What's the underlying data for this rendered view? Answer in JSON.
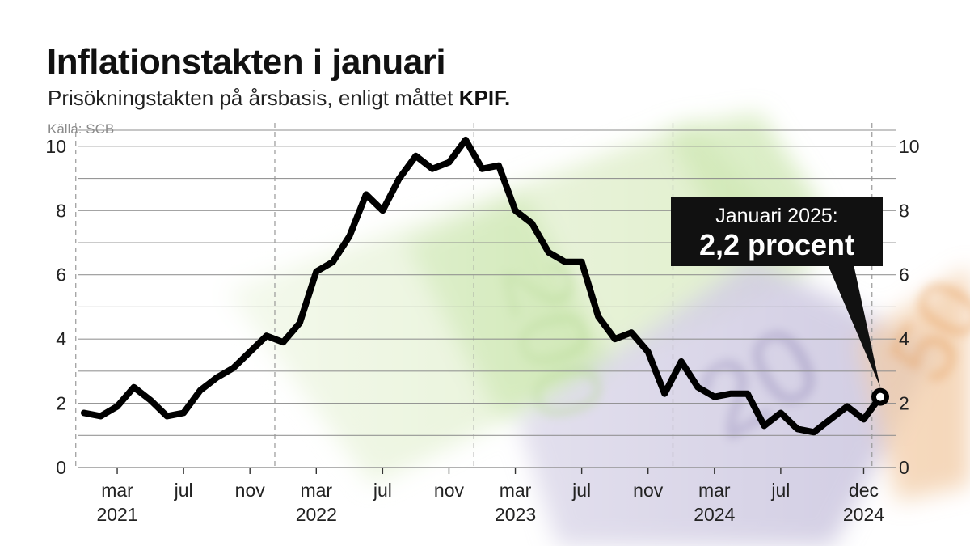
{
  "header": {
    "title": "Inflationstakten i januari",
    "subtitle_prefix": "Prisökningstakten på årsbasis, enligt måttet ",
    "subtitle_emph": "KPIF.",
    "source": "Källa: SCB"
  },
  "callout": {
    "line1": "Januari 2025:",
    "line2": "2,2 procent"
  },
  "colors": {
    "line": "#000000",
    "grid": "#8c8c8c",
    "axis_text": "#222222",
    "callout_bg": "#111111",
    "callout_text": "#ffffff",
    "banknote_green": "#b9dc8a",
    "banknote_purple": "#c2bad6",
    "banknote_orange": "#efc19a"
  },
  "chart_data": {
    "type": "line",
    "title": "Inflationstakten i januari",
    "subtitle": "Prisökningstakten på årsbasis, enligt måttet KPIF.",
    "ylim": [
      0,
      10.5
    ],
    "yticks": [
      0,
      2,
      4,
      6,
      8,
      10
    ],
    "grid": true,
    "axis_right": true,
    "x_ticks": [
      {
        "label": "mar",
        "year": "2021",
        "index": 2
      },
      {
        "label": "jul",
        "year": "",
        "index": 6
      },
      {
        "label": "nov",
        "year": "",
        "index": 10
      },
      {
        "label": "mar",
        "year": "2022",
        "index": 14
      },
      {
        "label": "jul",
        "year": "",
        "index": 18
      },
      {
        "label": "nov",
        "year": "",
        "index": 22
      },
      {
        "label": "mar",
        "year": "2023",
        "index": 26
      },
      {
        "label": "jul",
        "year": "",
        "index": 30
      },
      {
        "label": "nov",
        "year": "",
        "index": 34
      },
      {
        "label": "mar",
        "year": "2024",
        "index": 38
      },
      {
        "label": "jul",
        "year": "",
        "index": 42
      },
      {
        "label": "dec",
        "year": "2024",
        "index": 47
      }
    ],
    "year_separators": [
      0,
      12,
      24,
      36,
      48
    ],
    "x_start": "jan 2021",
    "x": [
      "jan 2021",
      "feb 2021",
      "mar 2021",
      "apr 2021",
      "maj 2021",
      "jun 2021",
      "jul 2021",
      "aug 2021",
      "sep 2021",
      "okt 2021",
      "nov 2021",
      "dec 2021",
      "jan 2022",
      "feb 2022",
      "mar 2022",
      "apr 2022",
      "maj 2022",
      "jun 2022",
      "jul 2022",
      "aug 2022",
      "sep 2022",
      "okt 2022",
      "nov 2022",
      "dec 2022",
      "jan 2023",
      "feb 2023",
      "mar 2023",
      "apr 2023",
      "maj 2023",
      "jun 2023",
      "jul 2023",
      "aug 2023",
      "sep 2023",
      "okt 2023",
      "nov 2023",
      "dec 2023",
      "jan 2024",
      "feb 2024",
      "mar 2024",
      "apr 2024",
      "maj 2024",
      "jun 2024",
      "jul 2024",
      "aug 2024",
      "sep 2024",
      "okt 2024",
      "nov 2024",
      "dec 2024",
      "jan 2025"
    ],
    "values": [
      1.7,
      1.6,
      1.9,
      2.5,
      2.1,
      1.6,
      1.7,
      2.4,
      2.8,
      3.1,
      3.6,
      4.1,
      3.9,
      4.5,
      6.1,
      6.4,
      7.2,
      8.5,
      8.0,
      9.0,
      9.7,
      9.3,
      9.5,
      10.2,
      9.3,
      9.4,
      8.0,
      7.6,
      6.7,
      6.4,
      6.4,
      4.7,
      4.0,
      4.2,
      3.6,
      2.3,
      3.3,
      2.5,
      2.2,
      2.3,
      2.3,
      1.3,
      1.7,
      1.2,
      1.1,
      1.5,
      1.9,
      1.5,
      2.2
    ],
    "highlight": {
      "index": 48,
      "value": 2.2
    }
  }
}
